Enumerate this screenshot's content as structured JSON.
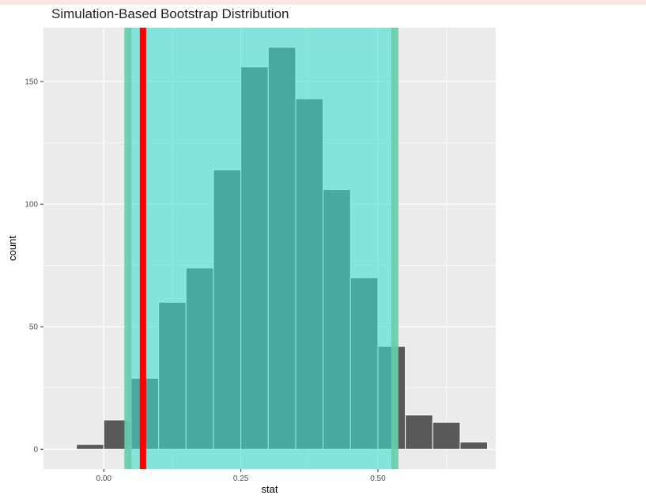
{
  "chart_data": {
    "type": "bar",
    "title": "Simulation-Based Bootstrap Distribution",
    "xlabel": "stat",
    "ylabel": "count",
    "xlim": [
      -0.11,
      0.715
    ],
    "ylim": [
      -8,
      172
    ],
    "x_ticks": [
      0.0,
      0.25,
      0.5
    ],
    "x_tick_labels": [
      "0.00",
      "0.25",
      "0.50"
    ],
    "y_ticks": [
      0,
      50,
      100,
      150
    ],
    "y_tick_labels": [
      "0",
      "50",
      "100",
      "150"
    ],
    "grid": true,
    "bin_width": 0.05,
    "bins": [
      {
        "x": -0.025,
        "count": 2
      },
      {
        "x": 0.025,
        "count": 12
      },
      {
        "x": 0.075,
        "count": 29
      },
      {
        "x": 0.125,
        "count": 60
      },
      {
        "x": 0.175,
        "count": 74
      },
      {
        "x": 0.225,
        "count": 114
      },
      {
        "x": 0.275,
        "count": 156
      },
      {
        "x": 0.325,
        "count": 164
      },
      {
        "x": 0.375,
        "count": 143
      },
      {
        "x": 0.425,
        "count": 106
      },
      {
        "x": 0.475,
        "count": 70
      },
      {
        "x": 0.525,
        "count": 42
      },
      {
        "x": 0.575,
        "count": 14
      },
      {
        "x": 0.625,
        "count": 11
      },
      {
        "x": 0.675,
        "count": 3
      }
    ],
    "confidence_interval": {
      "lower": 0.044,
      "upper": 0.531
    },
    "observed_stat": 0.0715,
    "colors": {
      "panel": "#ebebeb",
      "grid": "#ffffff",
      "bar": "#595959",
      "shade": "#40e0d0",
      "ci_edge": "#66cdaa",
      "observed": "#ff0000"
    }
  }
}
